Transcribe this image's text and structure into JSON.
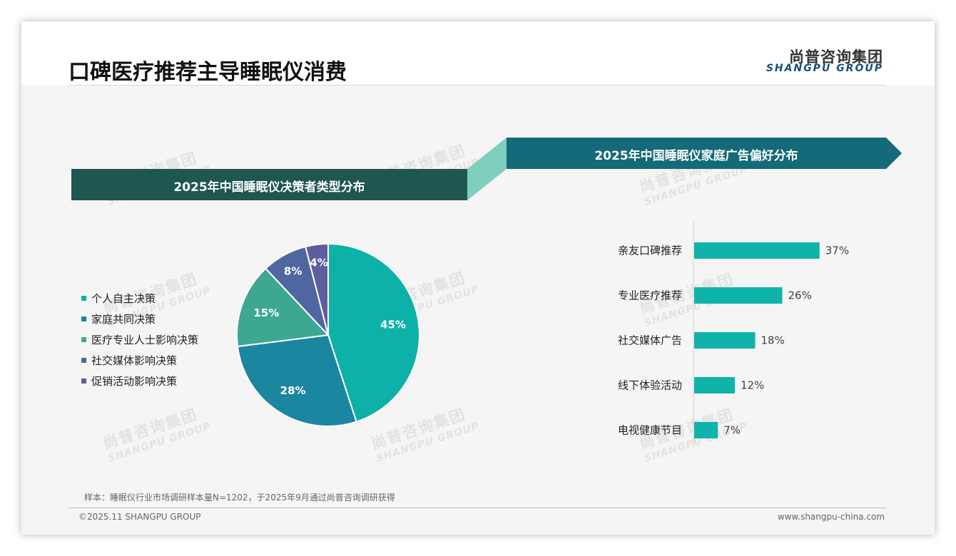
{
  "header": {
    "title": "口碑医疗推荐主导睡眠仪消费",
    "brand_cn": "尚普咨询集团",
    "brand_en": "SHANGPU GROUP"
  },
  "watermark": {
    "cn": "尚普咨询集团",
    "en": "SHANGPU GROUP"
  },
  "left_panel": {
    "banner_title": "2025年中国睡眠仪决策者类型分布"
  },
  "right_panel": {
    "banner_title": "2025年中国睡眠仪家庭广告偏好分布"
  },
  "colors": {
    "left_banner": "#1e5650",
    "right_banner": "#146a78",
    "connector": "#7fcfbd",
    "bar": "#0fb3a9",
    "text_dark": "#222222"
  },
  "chart_data": [
    {
      "type": "pie",
      "title": "2025年中国睡眠仪决策者类型分布",
      "legend_position": "left",
      "slices": [
        {
          "label": "个人自主决策",
          "value": 45,
          "display": "45%",
          "color": "#0db1a7"
        },
        {
          "label": "家庭共同决策",
          "value": 28,
          "display": "28%",
          "color": "#1a86a0"
        },
        {
          "label": "医疗专业人士影响决策",
          "value": 15,
          "display": "15%",
          "color": "#3ea792"
        },
        {
          "label": "社交媒体影响决策",
          "value": 8,
          "display": "8%",
          "color": "#4f66a1"
        },
        {
          "label": "促销活动影响决策",
          "value": 4,
          "display": "4%",
          "color": "#5f5c9f"
        }
      ]
    },
    {
      "type": "bar",
      "orientation": "horizontal",
      "title": "2025年中国睡眠仪家庭广告偏好分布",
      "categories": [
        "亲友口碑推荐",
        "专业医疗推荐",
        "社交媒体广告",
        "线下体验活动",
        "电视健康节目"
      ],
      "values": [
        37,
        26,
        18,
        12,
        7
      ],
      "value_labels": [
        "37%",
        "26%",
        "18%",
        "12%",
        "7%"
      ],
      "unit": "%",
      "grid": false
    }
  ],
  "footer": {
    "sample_note": "样本：睡眠仪行业市场调研样本量N=1202，于2025年9月通过尚普咨询调研获得",
    "copyright": "©2025.11 SHANGPU GROUP",
    "website": "www.shangpu-china.com"
  }
}
